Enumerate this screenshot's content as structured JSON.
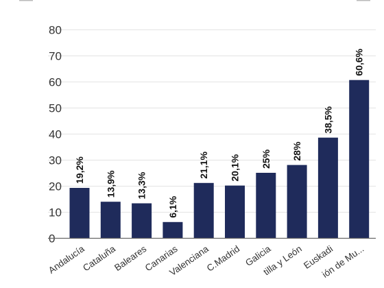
{
  "chart_data": {
    "type": "bar",
    "categories": [
      "Andalucía",
      "Cataluña",
      "Baleares",
      "Canarias",
      "Valenciana",
      "C.Madrid",
      "Galicia",
      "tilla y León",
      "Euskadi",
      "ión de Mu..."
    ],
    "values": [
      19.2,
      13.9,
      13.3,
      6.1,
      21.1,
      20.1,
      25,
      28,
      38.5,
      60.6
    ],
    "data_labels": [
      "19,2%",
      "13,9%",
      "13,3%",
      "6,1%",
      "21,1%",
      "20,1%",
      "25%",
      "28%",
      "38,5%",
      "60,6%"
    ],
    "y_ticks": [
      0,
      10,
      20,
      30,
      40,
      50,
      60,
      70,
      80
    ],
    "ylim": [
      0,
      80
    ],
    "grid": true,
    "bar_color": "#1f2b5b",
    "grid_color": "#e3e3e3"
  }
}
